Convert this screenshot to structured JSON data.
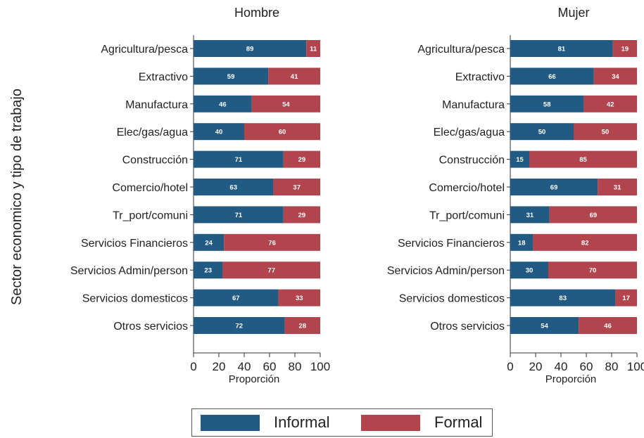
{
  "chart_data": {
    "type": "bar",
    "orientation": "horizontal",
    "stacked": true,
    "ylabel": "Sector economico y tipo de trabajo",
    "categories": [
      "Agricultura/pesca",
      "Extractivo",
      "Manufactura",
      "Elec/gas/agua",
      "Construcción",
      "Comercio/hotel",
      "Tr_port/comuni",
      "Servicios Financieros",
      "Servicios Admin/person",
      "Servicios domesticos",
      "Otros servicios"
    ],
    "xticks": [
      "0",
      "20",
      "40",
      "60",
      "80",
      "100"
    ],
    "xlim": [
      0,
      100
    ],
    "grid": false,
    "legend_position": "bottom",
    "colors": {
      "Informal": "#215a82",
      "Formal": "#b1444c"
    },
    "panels": [
      {
        "title": "Hombre",
        "xlabel": "Proporción",
        "series": [
          {
            "name": "Informal",
            "values": [
              89,
              59,
              46,
              40,
              71,
              63,
              71,
              24,
              23,
              67,
              72
            ]
          },
          {
            "name": "Formal",
            "values": [
              11,
              41,
              54,
              60,
              29,
              37,
              29,
              76,
              77,
              33,
              28
            ]
          }
        ]
      },
      {
        "title": "Mujer",
        "xlabel": "Proporción",
        "series": [
          {
            "name": "Informal",
            "values": [
              81,
              66,
              58,
              50,
              15,
              69,
              31,
              18,
              30,
              83,
              54
            ]
          },
          {
            "name": "Formal",
            "values": [
              19,
              34,
              42,
              50,
              85,
              31,
              69,
              82,
              70,
              17,
              46
            ]
          }
        ]
      }
    ]
  },
  "legend": {
    "items": [
      {
        "label": "Informal"
      },
      {
        "label": "Formal"
      }
    ]
  }
}
